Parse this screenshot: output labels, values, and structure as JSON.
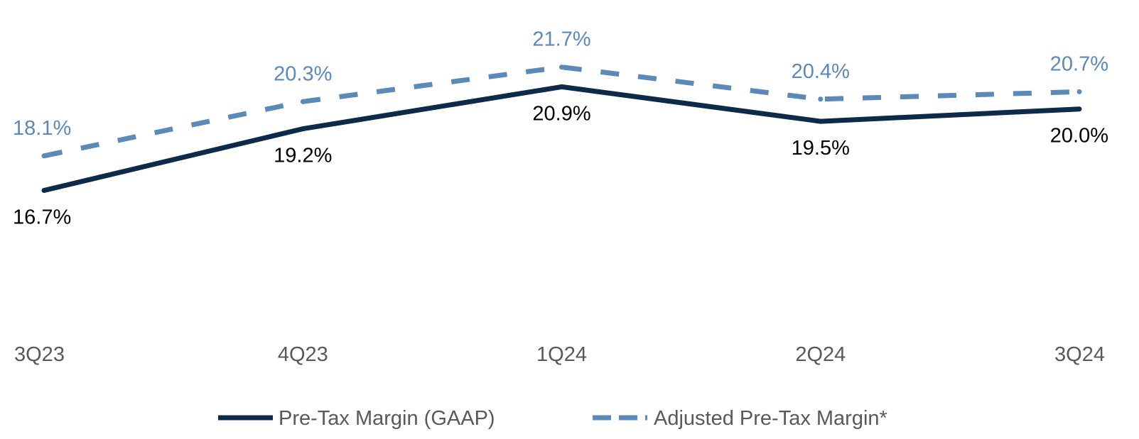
{
  "chart_data": {
    "type": "line",
    "categories": [
      "3Q23",
      "4Q23",
      "1Q24",
      "2Q24",
      "3Q24"
    ],
    "series": [
      {
        "name": "Pre-Tax Margin (GAAP)",
        "values": [
          16.7,
          19.2,
          20.9,
          19.5,
          20.0
        ],
        "labels": [
          "16.7%",
          "19.2%",
          "20.9%",
          "19.5%",
          "20.0%"
        ],
        "color": "#0d2a4a",
        "style": "solid"
      },
      {
        "name": "Adjusted Pre-Tax Margin*",
        "values": [
          18.1,
          20.3,
          21.7,
          20.4,
          20.7
        ],
        "labels": [
          "18.1%",
          "20.3%",
          "21.7%",
          "20.4%",
          "20.7%"
        ],
        "color": "#5b8ab8",
        "style": "dashed"
      }
    ],
    "ylim": [
      12.0,
      23.5
    ],
    "grid": false,
    "legend": "bottom-center"
  }
}
